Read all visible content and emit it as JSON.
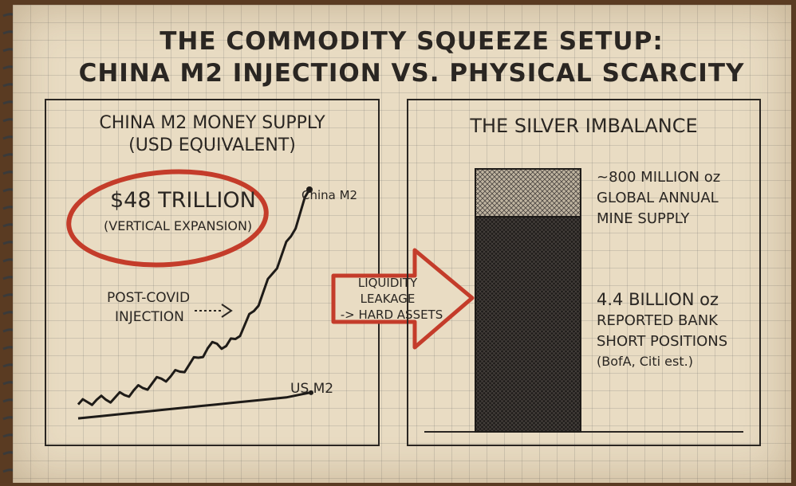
{
  "title": {
    "line1": "THE COMMODITY SQUEEZE SETUP:",
    "line2": "CHINA M2 INJECTION VS. PHYSICAL SCARCITY"
  },
  "colors": {
    "accent_red": "#c43c2a",
    "ink": "#2a2622",
    "paper": "#e9dcc3"
  },
  "chart_data": [
    {
      "type": "line",
      "title_line1": "CHINA M2 MONEY SUPPLY",
      "title_line2": "(USD EQUIVALENT)",
      "series": [
        {
          "name": "China M2",
          "x": [
            0,
            4,
            8,
            12,
            16,
            20,
            24,
            28,
            32,
            36,
            40,
            44,
            48,
            52,
            56,
            60,
            64,
            68,
            72,
            76,
            80,
            84,
            88,
            92,
            96,
            100
          ],
          "values": [
            8,
            9,
            10,
            10,
            11,
            12,
            14,
            15,
            17,
            19,
            20,
            22,
            25,
            28,
            32,
            34,
            33,
            36,
            42,
            48,
            56,
            64,
            72,
            80,
            90,
            100
          ]
        },
        {
          "name": "US M2",
          "x": [
            0,
            10,
            20,
            30,
            40,
            50,
            60,
            70,
            80,
            90,
            100
          ],
          "values": [
            2,
            3,
            4,
            5,
            6,
            7,
            8,
            9,
            10,
            11,
            13
          ]
        }
      ],
      "callout_line1": "$48 TRILLION",
      "callout_line2": "(VERTICAL EXPANSION)",
      "annotation_line1": "POST-COVID",
      "annotation_line2": "INJECTION",
      "grid": true
    },
    {
      "type": "bar",
      "title": "THE SILVER IMBALANCE",
      "categories": [
        "Global annual mine supply",
        "Reported bank short positions"
      ],
      "values": [
        0.8,
        4.4
      ],
      "units": "billion oz",
      "stacked": true,
      "labels": {
        "supply_line1": "~800 MILLION oz",
        "supply_line2": "GLOBAL ANNUAL",
        "supply_line3": "MINE SUPPLY",
        "short_line1": "4.4 BILLION oz",
        "short_line2": "REPORTED BANK",
        "short_line3": "SHORT POSITIONS",
        "short_line4": "(BofA, Citi est.)"
      }
    }
  ],
  "arrow": {
    "line1": "LIQUIDITY",
    "line2": "LEAKAGE",
    "line3": "-> HARD ASSETS"
  },
  "icons": {
    "spiral": "spiral-binding-icon",
    "arrow": "big-arrow-icon"
  }
}
